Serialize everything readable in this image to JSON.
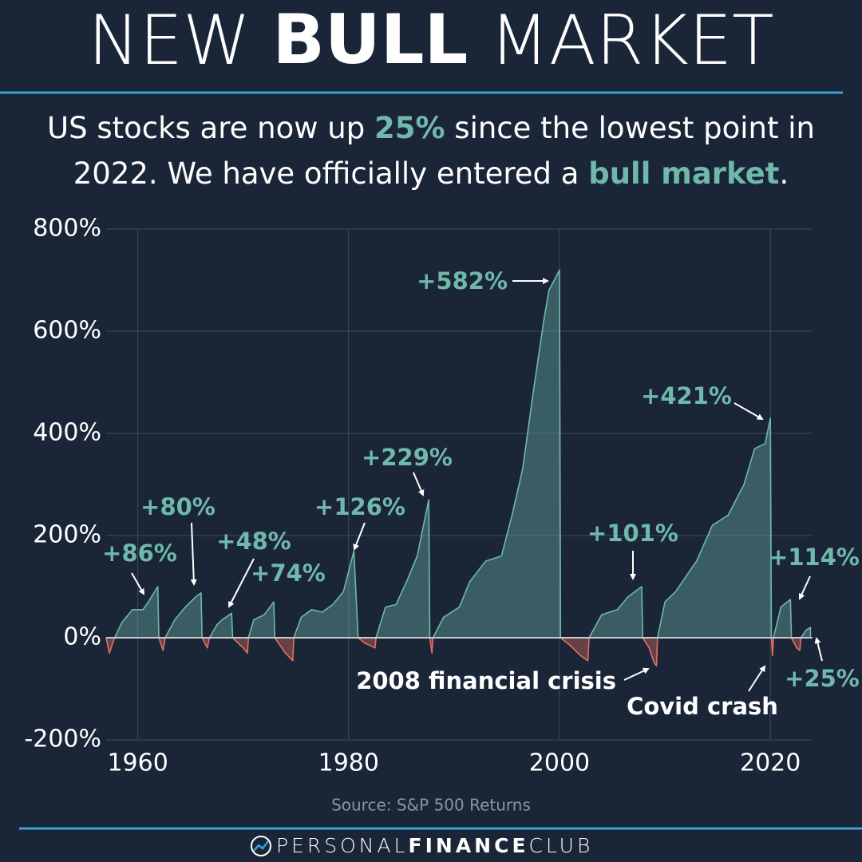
{
  "chart_data": {
    "type": "area",
    "title": {
      "parts": [
        "NEW ",
        "BULL",
        " MARKET"
      ]
    },
    "subtitle": {
      "line1": [
        "US stocks are now up ",
        "25%",
        " since the lowest point in"
      ],
      "line2": [
        "2022. We have officially entered a ",
        "bull market",
        "."
      ]
    },
    "source": "Source: S&P 500 Returns",
    "brand": [
      "PERSONAL",
      "FINANCE",
      "CLUB"
    ],
    "x": [
      1957.0,
      1957.3,
      1957.8,
      1958.5,
      1959.5,
      1960.5,
      1961.0,
      1961.9,
      1962.0,
      1962.4,
      1962.6,
      1963.5,
      1964.5,
      1965.5,
      1966.0,
      1966.1,
      1966.6,
      1966.8,
      1967.5,
      1968.0,
      1968.9,
      1969.0,
      1970.0,
      1970.4,
      1970.5,
      1971.0,
      1972.0,
      1972.9,
      1973.0,
      1974.0,
      1974.7,
      1974.8,
      1975.5,
      1976.5,
      1977.5,
      1978.5,
      1979.5,
      1980.5,
      1980.9,
      1981.5,
      1982.5,
      1982.6,
      1983.5,
      1984.5,
      1985.5,
      1986.5,
      1987.6,
      1987.7,
      1987.9,
      1988.0,
      1989.0,
      1990.5,
      1991.5,
      1993.0,
      1994.5,
      1995.5,
      1996.5,
      1997.5,
      1998.5,
      1999.0,
      2000.0,
      2000.1,
      2001.0,
      2002.0,
      2002.7,
      2002.8,
      2004.0,
      2005.5,
      2006.5,
      2007.8,
      2007.9,
      2008.5,
      2009.0,
      2009.2,
      2009.3,
      2010.0,
      2011.0,
      2013.0,
      2014.5,
      2016.0,
      2017.5,
      2018.5,
      2019.5,
      2020.0,
      2020.1,
      2020.2,
      2020.3,
      2021.0,
      2021.9,
      2022.0,
      2022.5,
      2022.8,
      2022.9,
      2023.4,
      2023.8
    ],
    "series": [
      {
        "color": "#6fb8aa",
        "negative_color": "#e2705f",
        "values": [
          0,
          -30,
          0,
          30,
          55,
          55,
          70,
          100,
          0,
          -25,
          0,
          35,
          60,
          80,
          88,
          0,
          -20,
          0,
          25,
          35,
          48,
          0,
          -20,
          -30,
          0,
          35,
          45,
          70,
          0,
          -30,
          -45,
          0,
          40,
          55,
          50,
          65,
          90,
          170,
          0,
          -10,
          -20,
          0,
          60,
          65,
          110,
          160,
          270,
          0,
          -30,
          0,
          40,
          60,
          110,
          150,
          160,
          240,
          330,
          480,
          620,
          680,
          720,
          0,
          -15,
          -35,
          -45,
          0,
          45,
          55,
          80,
          100,
          0,
          -20,
          -50,
          -55,
          0,
          70,
          90,
          150,
          220,
          240,
          300,
          370,
          380,
          430,
          0,
          -35,
          0,
          60,
          75,
          0,
          -20,
          -25,
          0,
          15,
          20
        ]
      }
    ],
    "xlim": [
      1957,
      2024
    ],
    "ylim": [
      -200,
      800
    ],
    "xticks": [
      1960,
      1980,
      2000,
      2020
    ],
    "yticks": [
      {
        "value": -200,
        "label": "-200%"
      },
      {
        "value": 0,
        "label": "0%"
      },
      {
        "value": 200,
        "label": "200%"
      },
      {
        "value": 400,
        "label": "400%"
      },
      {
        "value": 600,
        "label": "600%"
      },
      {
        "value": 800,
        "label": "800%"
      }
    ],
    "grid": true,
    "annotations": [
      {
        "text": "+86%",
        "color": "#6fb8aa"
      },
      {
        "text": "+80%",
        "color": "#6fb8aa"
      },
      {
        "text": "+48%",
        "color": "#6fb8aa"
      },
      {
        "text": "+74%",
        "color": "#6fb8aa"
      },
      {
        "text": "+126%",
        "color": "#6fb8aa"
      },
      {
        "text": "+229%",
        "color": "#6fb8aa"
      },
      {
        "text": "+582%",
        "color": "#6fb8aa"
      },
      {
        "text": "+421%",
        "color": "#6fb8aa"
      },
      {
        "text": "+101%",
        "color": "#6fb8aa"
      },
      {
        "text": "+114%",
        "color": "#6fb8aa"
      },
      {
        "text": "2008 financial crisis",
        "color": "#ffffff"
      },
      {
        "text": "Covid crash",
        "color": "#ffffff"
      },
      {
        "text": "+25%",
        "color": "#6fb8aa"
      }
    ]
  }
}
